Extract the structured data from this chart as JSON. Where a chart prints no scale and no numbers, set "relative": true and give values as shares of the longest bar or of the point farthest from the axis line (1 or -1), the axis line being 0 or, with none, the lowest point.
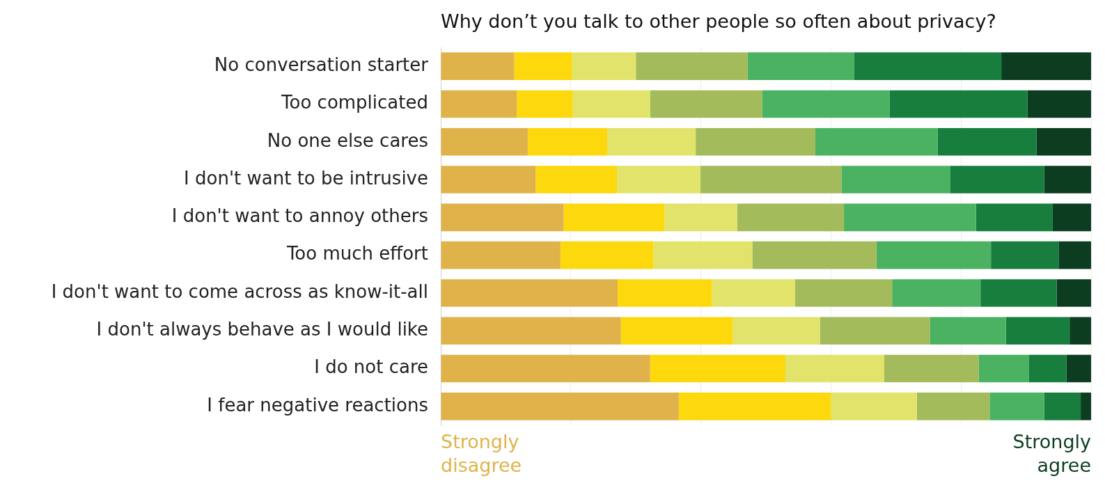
{
  "chart_data": {
    "type": "bar",
    "orientation": "horizontal",
    "stacked": true,
    "relative": true,
    "grid": "x",
    "legend": false,
    "title": "Why don’t you talk to other people so often about privacy?",
    "categories": [
      "No conversation starter",
      "Too complicated",
      "No one else cares",
      "I don't want to be intrusive",
      "I don't want to annoy others",
      "Too much effort",
      "I don't want to come across as know-it-all",
      "I don't always behave as I would like",
      "I do not care",
      "I fear negative reactions"
    ],
    "series": [
      {
        "color": "#dfb34a",
        "values": [
          0.113,
          0.117,
          0.134,
          0.146,
          0.189,
          0.184,
          0.272,
          0.277,
          0.322,
          0.366
        ]
      },
      {
        "color": "#fcd80c",
        "values": [
          0.089,
          0.086,
          0.122,
          0.125,
          0.155,
          0.143,
          0.145,
          0.172,
          0.208,
          0.234
        ]
      },
      {
        "color": "#e2e36a",
        "values": [
          0.098,
          0.119,
          0.136,
          0.128,
          0.112,
          0.152,
          0.128,
          0.134,
          0.152,
          0.132
        ]
      },
      {
        "color": "#a4bb5c",
        "values": [
          0.172,
          0.172,
          0.184,
          0.217,
          0.164,
          0.191,
          0.149,
          0.169,
          0.145,
          0.112
        ]
      },
      {
        "color": "#4bb262",
        "values": [
          0.164,
          0.196,
          0.188,
          0.167,
          0.203,
          0.176,
          0.136,
          0.117,
          0.077,
          0.084
        ]
      },
      {
        "color": "#177e3e",
        "values": [
          0.226,
          0.212,
          0.152,
          0.145,
          0.118,
          0.104,
          0.117,
          0.098,
          0.058,
          0.056
        ]
      },
      {
        "color": "#0d3d20",
        "values": [
          0.138,
          0.098,
          0.084,
          0.072,
          0.059,
          0.05,
          0.053,
          0.033,
          0.038,
          0.016
        ]
      }
    ],
    "annotations": [
      "Strongly\ndisagree",
      "Strongly\nagree"
    ]
  }
}
